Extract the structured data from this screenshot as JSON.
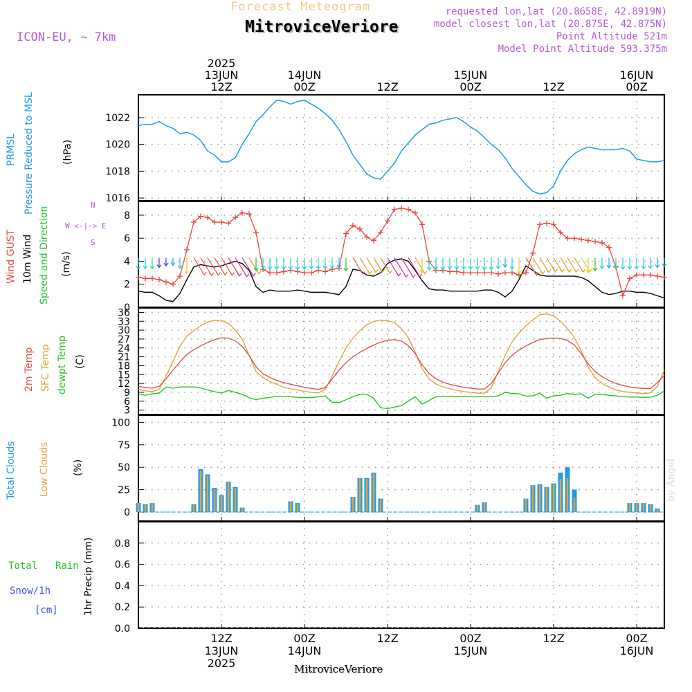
{
  "header": {
    "subtitle": "Forecast Meteogram",
    "station": "MitroviceVeriore",
    "model": "ICON-EU, ~ 7km",
    "requested": "requested lon,lat (20.8658E, 42.8919N)",
    "closest": "model closest lon,lat (20.875E, 42.875N)",
    "point_alt": "Point Altitude 521m",
    "model_alt": "Model Point Altitude 593.375m",
    "footer_station": "MitroviceVeriore",
    "watermark": "by Angel"
  },
  "time_axis": {
    "top_labels": [
      {
        "t": 12,
        "lines": [
          "2025",
          "13JUN",
          "12Z"
        ]
      },
      {
        "t": 24,
        "lines": [
          "14JUN",
          "00Z"
        ]
      },
      {
        "t": 36,
        "lines": [
          "12Z"
        ]
      },
      {
        "t": 48,
        "lines": [
          "15JUN",
          "00Z"
        ]
      },
      {
        "t": 60,
        "lines": [
          "12Z"
        ]
      },
      {
        "t": 72,
        "lines": [
          "16JUN",
          "00Z"
        ]
      }
    ],
    "bottom_labels": [
      {
        "t": 12,
        "lines": [
          "12Z",
          "13JUN",
          "2025"
        ]
      },
      {
        "t": 24,
        "lines": [
          "00Z",
          "14JUN"
        ]
      },
      {
        "t": 36,
        "lines": [
          "12Z"
        ]
      },
      {
        "t": 48,
        "lines": [
          "00Z",
          "15JUN"
        ]
      },
      {
        "t": 60,
        "lines": [
          "12Z"
        ]
      },
      {
        "t": 72,
        "lines": [
          "00Z",
          "16JUN"
        ]
      }
    ]
  },
  "panel_labels": {
    "pressure": {
      "a": "PRMSL",
      "b": "Pressure Reduced to MSL",
      "unit": "(hPa)"
    },
    "wind": {
      "a": "Wind GUST",
      "b": "10m Wind",
      "c": "Speed and Direction",
      "unit": "(m/s)",
      "compass": [
        "N",
        "W <-|-> E",
        "S"
      ]
    },
    "temp": {
      "a": "2m Temp",
      "b": "SFC Temp",
      "c": "dewpt Temp",
      "unit": "(C)"
    },
    "cloud": {
      "a": "Total Clouds",
      "b": "Low Clouds",
      "unit": "(%)"
    },
    "precip": {
      "a": "Total",
      "b": "Rain",
      "c": "Snow/1h",
      "d": "[cm]",
      "unit": "1hr Precip (mm)"
    }
  },
  "colors": {
    "pressure": "#1e9be6",
    "gust": "#e8453c",
    "wind": "#000000",
    "temp2m": "#e05050",
    "sfc": "#e6a23c",
    "dewpt": "#22c422",
    "total_clouds": "#1e9be6",
    "low_clouds": "#e6a23c",
    "header_purple": "#b35ad8",
    "title_orange": "#f3c98a"
  },
  "chart_data": [
    {
      "type": "line",
      "title": "PRMSL Pressure Reduced to MSL",
      "ylabel": "(hPa)",
      "ylim": [
        1015.8,
        1023.7
      ],
      "yticks": [
        1016,
        1018,
        1020,
        1022
      ],
      "t": [
        0,
        1,
        2,
        3,
        4,
        5,
        6,
        7,
        8,
        9,
        10,
        11,
        12,
        13,
        14,
        15,
        16,
        17,
        18,
        19,
        20,
        21,
        22,
        23,
        24,
        25,
        26,
        27,
        28,
        29,
        30,
        31,
        32,
        33,
        34,
        35,
        36,
        37,
        38,
        39,
        40,
        41,
        42,
        43,
        44,
        45,
        46,
        47,
        48,
        49,
        50,
        51,
        52,
        53,
        54,
        55,
        56,
        57,
        58,
        59,
        60,
        61,
        62,
        63,
        64,
        65,
        66,
        67,
        68,
        69,
        70,
        71,
        72,
        73,
        74,
        75,
        76
      ],
      "series": [
        {
          "name": "PRMSL",
          "values": [
            1021.4,
            1021.5,
            1021.5,
            1021.7,
            1021.4,
            1021.2,
            1020.8,
            1020.9,
            1020.7,
            1020.3,
            1019.5,
            1019.2,
            1018.7,
            1018.7,
            1019.0,
            1020.0,
            1020.8,
            1021.7,
            1022.2,
            1022.8,
            1023.3,
            1023.2,
            1023.0,
            1023.2,
            1023.3,
            1023.0,
            1022.7,
            1022.3,
            1021.8,
            1021.1,
            1020.2,
            1019.2,
            1018.5,
            1017.8,
            1017.5,
            1017.4,
            1018.0,
            1018.6,
            1019.5,
            1020.1,
            1020.7,
            1021.1,
            1021.5,
            1021.6,
            1021.8,
            1021.9,
            1022.0,
            1021.7,
            1021.3,
            1021.0,
            1020.5,
            1020.0,
            1019.6,
            1019.0,
            1018.2,
            1017.6,
            1017.0,
            1016.5,
            1016.3,
            1016.4,
            1016.9,
            1018.0,
            1018.8,
            1019.3,
            1019.6,
            1019.8,
            1019.7,
            1019.6,
            1019.6,
            1019.6,
            1019.7,
            1019.5,
            1018.9,
            1018.8,
            1018.7,
            1018.7,
            1018.8
          ]
        }
      ]
    },
    {
      "type": "line",
      "title": "Wind GUST / 10m Wind Speed and Direction",
      "ylabel": "(m/s)",
      "ylim": [
        0,
        9.2
      ],
      "yticks": [
        0,
        2,
        4,
        6,
        8
      ],
      "t": [
        0,
        1,
        2,
        3,
        4,
        5,
        6,
        7,
        8,
        9,
        10,
        11,
        12,
        13,
        14,
        15,
        16,
        17,
        18,
        19,
        20,
        21,
        22,
        23,
        24,
        25,
        26,
        27,
        28,
        29,
        30,
        31,
        32,
        33,
        34,
        35,
        36,
        37,
        38,
        39,
        40,
        41,
        42,
        43,
        44,
        45,
        46,
        47,
        48,
        49,
        50,
        51,
        52,
        53,
        54,
        55,
        56,
        57,
        58,
        59,
        60,
        61,
        62,
        63,
        64,
        65,
        66,
        67,
        68,
        69,
        70,
        71,
        72,
        73,
        74,
        75,
        76
      ],
      "series": [
        {
          "name": "Wind GUST",
          "values": [
            2.6,
            2.5,
            2.5,
            2.4,
            2.2,
            2.0,
            2.7,
            5.0,
            7.4,
            7.9,
            7.8,
            7.4,
            7.4,
            7.3,
            7.8,
            8.2,
            8.1,
            6.5,
            3.3,
            3.0,
            3.0,
            3.1,
            3.2,
            3.1,
            3.0,
            3.0,
            3.2,
            3.1,
            3.3,
            3.4,
            6.4,
            7.1,
            6.8,
            6.1,
            5.8,
            6.5,
            7.5,
            8.5,
            8.6,
            8.5,
            8.2,
            7.2,
            4.0,
            3.2,
            3.2,
            3.1,
            3.1,
            3.0,
            3.0,
            3.0,
            3.0,
            3.0,
            2.9,
            3.0,
            3.0,
            2.8,
            3.0,
            4.7,
            7.2,
            7.3,
            7.2,
            6.5,
            6.0,
            6.0,
            5.9,
            5.8,
            5.7,
            5.6,
            5.2,
            3.5,
            1.0,
            2.5,
            2.8,
            2.8,
            2.8,
            2.7,
            2.6
          ]
        },
        {
          "name": "10m Wind",
          "values": [
            1.4,
            1.3,
            1.3,
            1.0,
            0.6,
            0.5,
            1.2,
            2.4,
            3.5,
            3.7,
            3.6,
            3.5,
            3.6,
            3.8,
            4.0,
            3.8,
            3.2,
            1.8,
            1.3,
            1.5,
            1.4,
            1.4,
            1.4,
            1.5,
            1.4,
            1.3,
            1.3,
            1.3,
            1.2,
            1.1,
            1.8,
            3.3,
            3.2,
            2.8,
            2.7,
            3.0,
            3.8,
            4.1,
            4.2,
            4.0,
            3.2,
            2.3,
            1.6,
            1.5,
            1.5,
            1.4,
            1.4,
            1.4,
            1.4,
            1.4,
            1.5,
            1.5,
            1.3,
            0.9,
            1.4,
            2.4,
            3.6,
            3.2,
            2.8,
            2.7,
            2.7,
            2.7,
            2.7,
            2.7,
            2.6,
            2.3,
            1.8,
            1.3,
            1.1,
            1.2,
            1.4,
            1.4,
            1.3,
            1.3,
            1.2,
            1.0,
            0.8
          ]
        }
      ]
    },
    {
      "type": "line",
      "title": "2m Temp / SFC Temp / dewpt Temp",
      "ylabel": "(C)",
      "ylim": [
        1.5,
        37.5
      ],
      "yticks": [
        3,
        6,
        9,
        12,
        15,
        18,
        21,
        24,
        27,
        30,
        33,
        36
      ],
      "t": [
        0,
        1,
        2,
        3,
        4,
        5,
        6,
        7,
        8,
        9,
        10,
        11,
        12,
        13,
        14,
        15,
        16,
        17,
        18,
        19,
        20,
        21,
        22,
        23,
        24,
        25,
        26,
        27,
        28,
        29,
        30,
        31,
        32,
        33,
        34,
        35,
        36,
        37,
        38,
        39,
        40,
        41,
        42,
        43,
        44,
        45,
        46,
        47,
        48,
        49,
        50,
        51,
        52,
        53,
        54,
        55,
        56,
        57,
        58,
        59,
        60,
        61,
        62,
        63,
        64,
        65,
        66,
        67,
        68,
        69,
        70,
        71,
        72,
        73,
        74,
        75,
        76
      ],
      "series": [
        {
          "name": "2m Temp",
          "values": [
            11.0,
            10.6,
            10.4,
            11.0,
            13.5,
            16.5,
            19.3,
            21.8,
            23.4,
            24.7,
            25.8,
            26.8,
            27.4,
            27.3,
            26.4,
            24.5,
            21.4,
            17.6,
            15.3,
            14.0,
            13.0,
            12.3,
            11.7,
            11.2,
            10.7,
            10.3,
            10.0,
            10.6,
            13.5,
            16.5,
            19.0,
            21.0,
            22.5,
            23.8,
            25.0,
            25.9,
            26.6,
            26.8,
            26.3,
            24.8,
            22.1,
            18.3,
            15.4,
            13.6,
            12.4,
            11.7,
            11.2,
            10.7,
            10.4,
            10.1,
            10.1,
            12.0,
            15.5,
            19.0,
            21.5,
            23.3,
            24.7,
            25.8,
            26.8,
            27.2,
            27.3,
            27.2,
            26.5,
            25.0,
            22.0,
            18.6,
            16.0,
            14.3,
            13.0,
            12.0,
            11.3,
            10.8,
            10.5,
            10.3,
            10.3,
            12.3,
            14.8
          ]
        },
        {
          "name": "SFC Temp",
          "values": [
            10.0,
            9.5,
            9.2,
            10.0,
            14.5,
            19.5,
            24.5,
            28.0,
            29.8,
            31.5,
            32.7,
            33.3,
            33.3,
            32.3,
            30.0,
            27.0,
            21.5,
            16.0,
            14.0,
            12.6,
            11.7,
            10.7,
            10.2,
            9.8,
            9.3,
            9.0,
            8.8,
            10.0,
            14.5,
            19.5,
            24.0,
            27.3,
            29.8,
            31.8,
            33.0,
            33.4,
            33.2,
            32.5,
            30.5,
            27.5,
            22.5,
            17.0,
            13.5,
            11.8,
            10.8,
            10.2,
            9.7,
            9.3,
            9.0,
            8.7,
            8.7,
            10.5,
            16.0,
            21.5,
            26.0,
            29.0,
            31.5,
            33.5,
            35.2,
            35.5,
            34.8,
            33.0,
            30.5,
            27.5,
            23.0,
            17.5,
            14.0,
            12.0,
            10.8,
            9.8,
            9.3,
            9.0,
            8.8,
            8.6,
            8.8,
            11.0,
            16.5
          ]
        },
        {
          "name": "dewpt Temp",
          "values": [
            8.4,
            8.0,
            8.5,
            8.7,
            10.8,
            10.4,
            10.8,
            10.8,
            10.8,
            10.5,
            9.8,
            9.2,
            8.8,
            9.6,
            9.0,
            8.3,
            7.2,
            6.5,
            7.0,
            7.3,
            7.6,
            7.6,
            7.5,
            7.3,
            7.2,
            7.2,
            7.5,
            7.8,
            5.7,
            5.5,
            6.5,
            7.5,
            8.3,
            8.3,
            7.0,
            3.8,
            3.5,
            4.0,
            4.5,
            6.0,
            7.5,
            5.0,
            6.2,
            7.5,
            7.5,
            7.5,
            7.5,
            7.5,
            7.5,
            7.5,
            7.5,
            7.5,
            7.8,
            9.0,
            8.6,
            8.5,
            7.7,
            7.8,
            8.7,
            7.0,
            7.8,
            8.0,
            8.6,
            8.3,
            8.5,
            7.0,
            8.3,
            8.3,
            8.0,
            7.8,
            7.5,
            7.4,
            7.4,
            7.3,
            7.4,
            8.0,
            9.5
          ]
        }
      ]
    },
    {
      "type": "bar",
      "title": "Total Clouds / Low Clouds",
      "ylabel": "(%)",
      "ylim": [
        -10,
        108
      ],
      "yticks": [
        0,
        25,
        50,
        75,
        100
      ],
      "t": [
        0,
        1,
        2,
        3,
        4,
        5,
        6,
        7,
        8,
        9,
        10,
        11,
        12,
        13,
        14,
        15,
        16,
        17,
        18,
        19,
        20,
        21,
        22,
        23,
        24,
        25,
        26,
        27,
        28,
        29,
        30,
        31,
        32,
        33,
        34,
        35,
        36,
        37,
        38,
        39,
        40,
        41,
        42,
        43,
        44,
        45,
        46,
        47,
        48,
        49,
        50,
        51,
        52,
        53,
        54,
        55,
        56,
        57,
        58,
        59,
        60,
        61,
        62,
        63,
        64,
        65,
        66,
        67,
        68,
        69,
        70,
        71,
        72,
        73,
        74,
        75,
        76
      ],
      "series": [
        {
          "name": "Total Clouds",
          "values": [
            10,
            9,
            10,
            0,
            0,
            0,
            0,
            0,
            9,
            48,
            42,
            27,
            19,
            34,
            28,
            5,
            0,
            0,
            0,
            0,
            0,
            0,
            12,
            10,
            0,
            0,
            0,
            0,
            0,
            0,
            0,
            17,
            38,
            38,
            44,
            15,
            0,
            0,
            0,
            0,
            0,
            0,
            0,
            0,
            0,
            0,
            0,
            0,
            0,
            8,
            11,
            0,
            0,
            0,
            0,
            0,
            15,
            30,
            31,
            28,
            32,
            44,
            50,
            25,
            0,
            0,
            0,
            0,
            0,
            0,
            0,
            10,
            10,
            10,
            9,
            4,
            0
          ]
        },
        {
          "name": "Low Clouds",
          "values": [
            10,
            9,
            10,
            0,
            0,
            0,
            0,
            0,
            9,
            46,
            40,
            26,
            18,
            34,
            27,
            5,
            0,
            0,
            0,
            0,
            0,
            0,
            12,
            9,
            0,
            0,
            0,
            0,
            0,
            0,
            0,
            17,
            38,
            37,
            43,
            14,
            0,
            0,
            0,
            0,
            0,
            0,
            0,
            0,
            0,
            0,
            0,
            0,
            0,
            8,
            11,
            0,
            0,
            0,
            0,
            0,
            15,
            30,
            30,
            28,
            31,
            37,
            38,
            16,
            0,
            0,
            0,
            0,
            0,
            0,
            0,
            10,
            10,
            10,
            9,
            3,
            0
          ]
        }
      ]
    },
    {
      "type": "bar",
      "title": "1hr Precip",
      "ylabel": "1hr Precip (mm)",
      "ylim": [
        0,
        1.0
      ],
      "yticks": [
        0,
        0.2,
        0.4,
        0.6,
        0.8
      ],
      "series": [
        {
          "name": "Total",
          "values": []
        },
        {
          "name": "Rain",
          "values": []
        },
        {
          "name": "Snow/1h",
          "values": []
        }
      ]
    }
  ]
}
